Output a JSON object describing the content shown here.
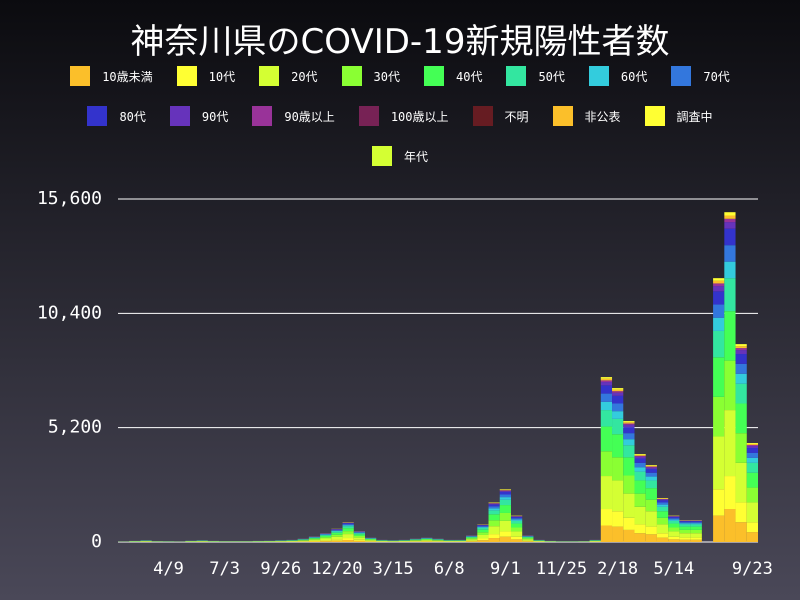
{
  "chart_data": {
    "type": "stacked_bar",
    "title": "神奈川県のCOVID-19新規陽性者数",
    "categories": [
      null,
      null,
      null,
      null,
      "4/9",
      null,
      null,
      null,
      null,
      "7/3",
      null,
      null,
      null,
      null,
      "9/26",
      null,
      null,
      null,
      null,
      "12/20",
      null,
      null,
      null,
      null,
      "3/15",
      null,
      null,
      null,
      null,
      "6/8",
      null,
      null,
      null,
      null,
      "9/1",
      null,
      null,
      null,
      null,
      "11/25",
      null,
      null,
      null,
      null,
      "2/18",
      null,
      null,
      null,
      null,
      "5/14",
      null,
      null,
      null,
      null,
      null,
      null,
      "9/23"
    ],
    "series": [
      {
        "name": "10歳未満",
        "color": "#fbbf2a",
        "values": [
          2,
          5,
          8,
          4,
          3,
          2,
          6,
          8,
          5,
          4,
          4,
          4,
          5,
          6,
          8,
          10,
          15,
          25,
          40,
          60,
          90,
          50,
          20,
          10,
          8,
          10,
          15,
          20,
          15,
          10,
          10,
          30,
          80,
          180,
          240,
          120,
          30,
          10,
          5,
          3,
          3,
          4,
          10,
          750,
          700,
          550,
          400,
          350,
          200,
          120,
          100,
          100,
          0,
          1200,
          1500,
          900,
          450
        ]
      },
      {
        "name": "10代",
        "color": "#ffff33",
        "values": [
          2,
          5,
          8,
          4,
          3,
          2,
          6,
          8,
          5,
          4,
          4,
          4,
          5,
          6,
          8,
          10,
          15,
          25,
          40,
          60,
          90,
          50,
          20,
          10,
          8,
          10,
          15,
          20,
          15,
          10,
          10,
          30,
          80,
          180,
          240,
          120,
          30,
          10,
          5,
          3,
          3,
          4,
          10,
          750,
          700,
          550,
          400,
          350,
          200,
          120,
          100,
          100,
          0,
          1200,
          1500,
          900,
          450
        ]
      },
      {
        "name": "20代",
        "color": "#d4ff33",
        "values": [
          4,
          10,
          16,
          8,
          6,
          4,
          12,
          16,
          10,
          8,
          8,
          8,
          10,
          12,
          16,
          20,
          30,
          50,
          80,
          120,
          180,
          100,
          40,
          20,
          16,
          20,
          30,
          40,
          30,
          20,
          20,
          60,
          160,
          360,
          480,
          240,
          60,
          20,
          10,
          6,
          6,
          8,
          20,
          1500,
          1400,
          1100,
          800,
          700,
          400,
          240,
          200,
          200,
          0,
          2400,
          3000,
          1800,
          900
        ]
      },
      {
        "name": "30代",
        "color": "#8aff33",
        "values": [
          3,
          8,
          12,
          6,
          5,
          3,
          9,
          12,
          8,
          6,
          6,
          6,
          8,
          9,
          12,
          15,
          23,
          38,
          60,
          90,
          135,
          75,
          30,
          15,
          12,
          15,
          23,
          30,
          23,
          15,
          15,
          45,
          120,
          270,
          360,
          180,
          45,
          15,
          8,
          5,
          5,
          6,
          15,
          1125,
          1050,
          825,
          600,
          525,
          300,
          180,
          150,
          150,
          0,
          1800,
          2250,
          1350,
          675
        ]
      },
      {
        "name": "40代",
        "color": "#44ff55",
        "values": [
          3,
          8,
          12,
          6,
          5,
          3,
          9,
          12,
          8,
          6,
          6,
          6,
          8,
          9,
          12,
          15,
          23,
          38,
          60,
          90,
          135,
          75,
          30,
          15,
          12,
          15,
          23,
          30,
          23,
          15,
          15,
          45,
          120,
          270,
          360,
          180,
          45,
          15,
          8,
          5,
          5,
          6,
          15,
          1125,
          1050,
          825,
          600,
          525,
          300,
          180,
          150,
          150,
          0,
          1800,
          2250,
          1350,
          675
        ]
      },
      {
        "name": "50代",
        "color": "#33e6a0",
        "values": [
          2,
          5,
          8,
          4,
          3,
          2,
          6,
          8,
          5,
          4,
          4,
          4,
          5,
          6,
          8,
          10,
          15,
          25,
          40,
          60,
          90,
          50,
          20,
          10,
          8,
          10,
          15,
          20,
          15,
          10,
          10,
          30,
          80,
          180,
          240,
          120,
          30,
          10,
          5,
          3,
          3,
          4,
          10,
          750,
          700,
          550,
          400,
          350,
          200,
          120,
          100,
          100,
          0,
          1200,
          1500,
          900,
          450
        ]
      },
      {
        "name": "60代",
        "color": "#33ccdd",
        "values": [
          1,
          3,
          4,
          2,
          2,
          1,
          3,
          4,
          3,
          2,
          2,
          2,
          3,
          3,
          4,
          5,
          8,
          13,
          20,
          30,
          45,
          25,
          10,
          5,
          4,
          5,
          8,
          10,
          8,
          5,
          5,
          15,
          40,
          90,
          120,
          60,
          15,
          5,
          3,
          2,
          2,
          2,
          5,
          375,
          350,
          275,
          200,
          175,
          100,
          60,
          50,
          50,
          0,
          600,
          750,
          450,
          225
        ]
      },
      {
        "name": "70代",
        "color": "#3377dd",
        "values": [
          1,
          3,
          4,
          2,
          2,
          1,
          3,
          4,
          3,
          2,
          2,
          2,
          3,
          3,
          4,
          5,
          8,
          13,
          20,
          30,
          45,
          25,
          10,
          5,
          4,
          5,
          8,
          10,
          8,
          5,
          5,
          15,
          40,
          90,
          120,
          60,
          15,
          5,
          3,
          2,
          2,
          2,
          5,
          375,
          350,
          275,
          200,
          175,
          100,
          60,
          50,
          50,
          0,
          600,
          750,
          450,
          225
        ]
      },
      {
        "name": "80代",
        "color": "#3333cc",
        "values": [
          1,
          3,
          4,
          2,
          2,
          1,
          3,
          4,
          3,
          2,
          2,
          2,
          3,
          3,
          4,
          5,
          8,
          13,
          20,
          30,
          45,
          25,
          10,
          5,
          4,
          5,
          8,
          10,
          8,
          5,
          5,
          15,
          40,
          90,
          120,
          60,
          15,
          5,
          3,
          2,
          2,
          2,
          5,
          375,
          350,
          275,
          200,
          175,
          100,
          60,
          50,
          50,
          0,
          600,
          750,
          450,
          225
        ]
      },
      {
        "name": "90代",
        "color": "#6633bb",
        "values": [
          0,
          1,
          2,
          1,
          1,
          0,
          1,
          2,
          1,
          1,
          1,
          1,
          1,
          1,
          2,
          2,
          3,
          5,
          8,
          12,
          18,
          10,
          4,
          2,
          2,
          2,
          3,
          4,
          3,
          2,
          2,
          6,
          16,
          36,
          48,
          24,
          6,
          2,
          1,
          1,
          1,
          1,
          2,
          150,
          140,
          110,
          80,
          70,
          40,
          24,
          20,
          20,
          0,
          240,
          300,
          180,
          90
        ]
      },
      {
        "name": "90歳以上",
        "color": "#993399",
        "values": [
          0,
          1,
          1,
          0,
          0,
          0,
          1,
          1,
          1,
          0,
          0,
          0,
          1,
          1,
          1,
          1,
          2,
          3,
          4,
          6,
          9,
          5,
          2,
          1,
          1,
          1,
          2,
          2,
          2,
          1,
          1,
          3,
          8,
          18,
          24,
          12,
          3,
          1,
          1,
          0,
          0,
          0,
          1,
          75,
          70,
          55,
          40,
          35,
          20,
          12,
          10,
          10,
          0,
          120,
          150,
          90,
          45
        ]
      },
      {
        "name": "100歳以上",
        "color": "#772255",
        "values": [
          0,
          0,
          0,
          0,
          0,
          0,
          0,
          0,
          0,
          0,
          0,
          0,
          0,
          0,
          0,
          0,
          0,
          0,
          0,
          0,
          0,
          0,
          0,
          0,
          0,
          0,
          0,
          0,
          0,
          0,
          0,
          0,
          0,
          0,
          0,
          0,
          0,
          0,
          0,
          0,
          0,
          0,
          0,
          0,
          0,
          0,
          0,
          0,
          0,
          0,
          0,
          0,
          0,
          0,
          0,
          0,
          0
        ]
      },
      {
        "name": "不明",
        "color": "#661c22",
        "values": [
          0,
          0,
          0,
          0,
          0,
          0,
          0,
          0,
          0,
          0,
          0,
          0,
          0,
          0,
          0,
          0,
          0,
          0,
          0,
          0,
          0,
          0,
          0,
          0,
          0,
          0,
          0,
          0,
          0,
          0,
          0,
          0,
          0,
          0,
          0,
          0,
          0,
          0,
          0,
          0,
          0,
          0,
          0,
          0,
          0,
          0,
          0,
          0,
          0,
          0,
          0,
          0,
          0,
          0,
          0,
          0,
          0
        ]
      },
      {
        "name": "非公表",
        "color": "#fbbf2a",
        "values": [
          0,
          1,
          1,
          0,
          0,
          0,
          1,
          1,
          1,
          0,
          0,
          0,
          1,
          1,
          1,
          1,
          2,
          3,
          4,
          6,
          9,
          5,
          2,
          1,
          1,
          1,
          2,
          2,
          2,
          1,
          1,
          3,
          8,
          18,
          24,
          12,
          3,
          1,
          1,
          0,
          0,
          0,
          1,
          75,
          70,
          55,
          40,
          35,
          20,
          12,
          10,
          10,
          0,
          120,
          150,
          90,
          45
        ]
      },
      {
        "name": "調査中",
        "color": "#ffff33",
        "values": [
          0,
          1,
          1,
          0,
          0,
          0,
          1,
          1,
          1,
          0,
          0,
          0,
          1,
          1,
          1,
          1,
          2,
          3,
          4,
          6,
          9,
          5,
          2,
          1,
          1,
          1,
          2,
          2,
          2,
          1,
          1,
          3,
          8,
          18,
          24,
          12,
          3,
          1,
          1,
          0,
          0,
          0,
          1,
          75,
          70,
          55,
          40,
          35,
          20,
          12,
          10,
          10,
          0,
          120,
          150,
          90,
          45
        ]
      },
      {
        "name": "年代",
        "color": "#d4ff33",
        "values": [
          0,
          0,
          0,
          0,
          0,
          0,
          0,
          0,
          0,
          0,
          0,
          0,
          0,
          0,
          0,
          0,
          0,
          0,
          0,
          0,
          0,
          0,
          0,
          0,
          0,
          0,
          0,
          0,
          0,
          0,
          0,
          0,
          0,
          0,
          0,
          0,
          0,
          0,
          0,
          0,
          0,
          0,
          0,
          0,
          0,
          0,
          0,
          0,
          0,
          0,
          0,
          0,
          0,
          0,
          0,
          0,
          0
        ]
      }
    ],
    "ylim": [
      0,
      15600
    ],
    "yticks": [
      0,
      {
        "value": 5200,
        "label": "5,200"
      },
      {
        "value": 10400,
        "label": "10,400"
      },
      {
        "value": 15600,
        "label": "15,600"
      }
    ],
    "grid": true
  }
}
